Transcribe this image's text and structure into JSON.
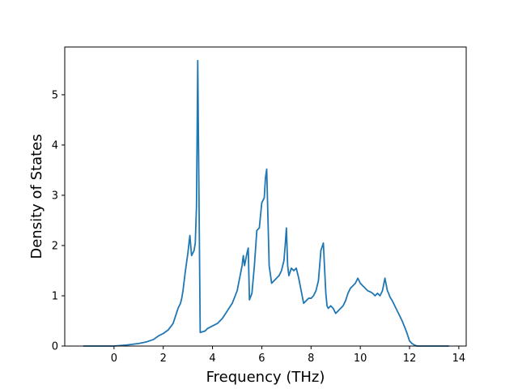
{
  "chart_data": {
    "type": "line",
    "title": "",
    "xlabel": "Frequency (THz)",
    "ylabel": "Density of States",
    "xlim": [
      -2.0,
      14.3
    ],
    "ylim": [
      0,
      5.95
    ],
    "xticks": [
      0,
      2,
      4,
      6,
      8,
      10,
      12,
      14
    ],
    "yticks": [
      0,
      1,
      2,
      3,
      4,
      5
    ],
    "grid": false,
    "legend": "none",
    "line_color": "#1f77b4",
    "series": [
      {
        "x": [
          -1.25,
          -0.5,
          0.0,
          0.5,
          1.0,
          1.3,
          1.6,
          1.8,
          2.0,
          2.2,
          2.4,
          2.5,
          2.6,
          2.7,
          2.75,
          2.8,
          2.9,
          3.0,
          3.08,
          3.15,
          3.25,
          3.3,
          3.35,
          3.4,
          3.45,
          3.5,
          3.7,
          3.8,
          4.0,
          4.2,
          4.4,
          4.6,
          4.8,
          5.0,
          5.1,
          5.2,
          5.25,
          5.3,
          5.4,
          5.45,
          5.5,
          5.6,
          5.7,
          5.8,
          5.9,
          6.0,
          6.1,
          6.15,
          6.2,
          6.3,
          6.4,
          6.5,
          6.6,
          6.7,
          6.8,
          6.9,
          6.95,
          7.0,
          7.05,
          7.1,
          7.2,
          7.3,
          7.4,
          7.5,
          7.6,
          7.7,
          7.8,
          7.9,
          8.0,
          8.1,
          8.2,
          8.3,
          8.4,
          8.5,
          8.6,
          8.65,
          8.7,
          8.8,
          8.9,
          9.0,
          9.1,
          9.2,
          9.3,
          9.4,
          9.5,
          9.6,
          9.7,
          9.8,
          9.9,
          10.0,
          10.1,
          10.2,
          10.3,
          10.4,
          10.5,
          10.6,
          10.7,
          10.8,
          10.9,
          11.0,
          11.1,
          11.15,
          11.2,
          11.3,
          11.4,
          11.5,
          11.6,
          11.7,
          11.8,
          11.9,
          12.0,
          12.1,
          12.2,
          12.3,
          12.4,
          12.6,
          13.0,
          13.6
        ],
        "y": [
          0.0,
          0.0,
          0.0,
          0.02,
          0.05,
          0.08,
          0.13,
          0.2,
          0.25,
          0.32,
          0.45,
          0.6,
          0.75,
          0.85,
          0.95,
          1.1,
          1.5,
          1.85,
          2.2,
          1.8,
          1.9,
          2.05,
          2.8,
          5.68,
          3.0,
          0.27,
          0.3,
          0.35,
          0.4,
          0.45,
          0.55,
          0.7,
          0.85,
          1.1,
          1.35,
          1.6,
          1.8,
          1.6,
          1.85,
          1.95,
          0.92,
          1.05,
          1.6,
          2.3,
          2.35,
          2.85,
          2.95,
          3.35,
          3.52,
          1.6,
          1.25,
          1.3,
          1.35,
          1.4,
          1.5,
          1.7,
          2.0,
          2.35,
          1.6,
          1.4,
          1.55,
          1.5,
          1.55,
          1.35,
          1.1,
          0.85,
          0.9,
          0.95,
          0.95,
          1.0,
          1.1,
          1.3,
          1.9,
          2.05,
          1.05,
          0.8,
          0.75,
          0.8,
          0.75,
          0.65,
          0.7,
          0.75,
          0.8,
          0.9,
          1.05,
          1.15,
          1.2,
          1.25,
          1.35,
          1.25,
          1.2,
          1.15,
          1.1,
          1.08,
          1.05,
          1.0,
          1.05,
          1.0,
          1.1,
          1.35,
          1.1,
          1.05,
          0.98,
          0.9,
          0.8,
          0.7,
          0.6,
          0.5,
          0.38,
          0.25,
          0.1,
          0.05,
          0.02,
          0.0,
          0.0,
          0.0,
          0.0,
          0.0
        ]
      }
    ]
  }
}
